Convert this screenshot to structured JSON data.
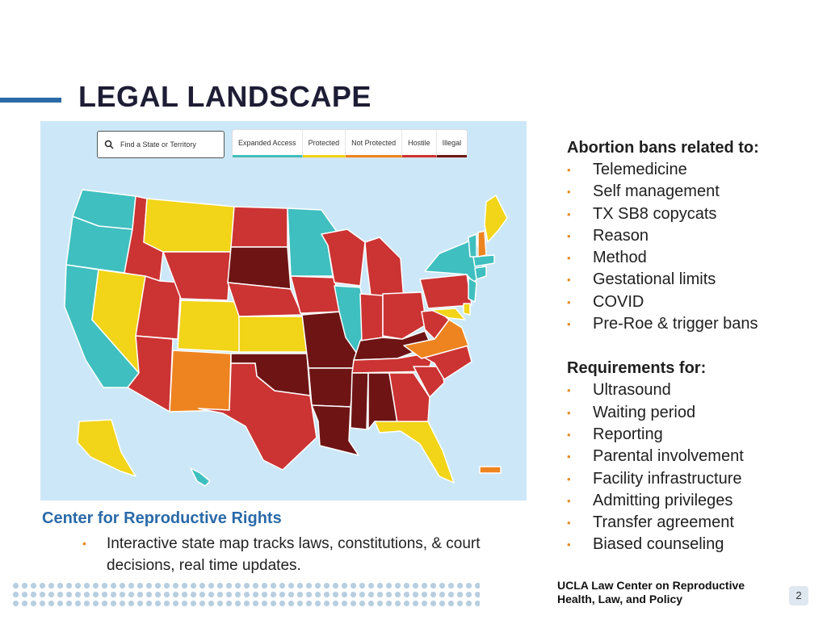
{
  "slide": {
    "title": "LEGAL LANDSCAPE",
    "page_number": "2",
    "footer_org": "UCLA Law Center on Reproductive Health, Law, and Policy"
  },
  "map": {
    "search_placeholder": "Find a State or Territory",
    "legend": [
      {
        "label": "Expanded Access",
        "color": "#3fbfbf"
      },
      {
        "label": "Protected",
        "color": "#f2d418"
      },
      {
        "label": "Not Protected",
        "color": "#ee8420"
      },
      {
        "label": "Hostile",
        "color": "#cc3333"
      },
      {
        "label": "Illegal",
        "color": "#6e1414"
      }
    ],
    "colors": {
      "ocean": "#cce8f8",
      "border": "#ffffff"
    }
  },
  "source": {
    "heading": "Center for Reproductive Rights",
    "bullet": "Interactive state map tracks laws, constitutions, & court decisions, real time updates."
  },
  "right": {
    "bans_heading": "Abortion bans related to:",
    "bans": [
      "Telemedicine",
      "Self management",
      "TX SB8 copycats",
      "Reason",
      "Method",
      "Gestational limits",
      "COVID",
      "Pre-Roe & trigger bans"
    ],
    "req_heading": "Requirements for:",
    "requirements": [
      "Ultrasound",
      "Waiting period",
      "Reporting",
      "Parental involvement",
      "Facility infrastructure",
      "Admitting privileges",
      "Transfer agreement",
      "Biased counseling"
    ]
  },
  "colors": {
    "accent": "#2a6aa8",
    "bullet": "#e58a1f",
    "title": "#1d1d35"
  }
}
